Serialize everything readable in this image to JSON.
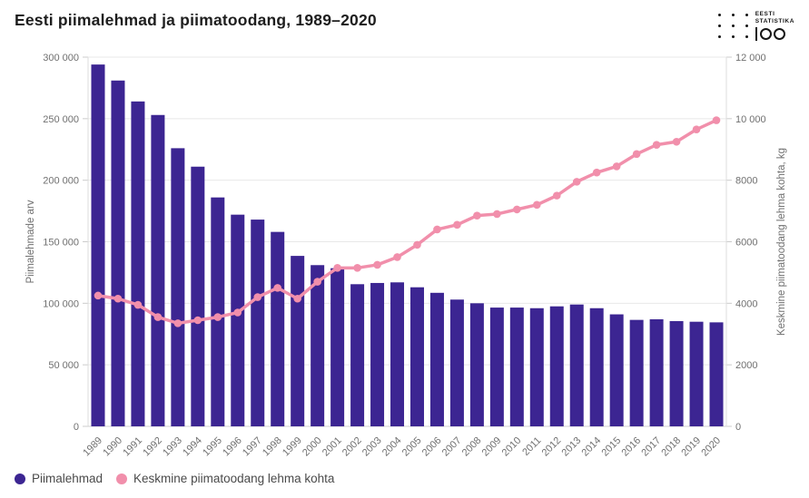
{
  "page": {
    "title": "Eesti piimalehmad ja piimatoodang, 1989–2020"
  },
  "logo": {
    "line1": "EESTI",
    "line2": "STATISTIKA",
    "number": "100"
  },
  "chart_data": {
    "type": "bar",
    "subtype": "bar+line dual axis",
    "title": "Eesti piimalehmad ja piimatoodang, 1989–2020",
    "categories": [
      "1989",
      "1990",
      "1991",
      "1992",
      "1993",
      "1994",
      "1995",
      "1996",
      "1997",
      "1998",
      "1999",
      "2000",
      "2001",
      "2002",
      "2003",
      "2004",
      "2005",
      "2006",
      "2007",
      "2008",
      "2009",
      "2010",
      "2011",
      "2012",
      "2013",
      "2014",
      "2015",
      "2016",
      "2017",
      "2018",
      "2019",
      "2020"
    ],
    "series": [
      {
        "name": "Piimalehmad",
        "type": "bar",
        "axis": "left",
        "color": "#3c2592",
        "values": [
          294000,
          281000,
          264000,
          253000,
          226000,
          211000,
          186000,
          172000,
          168000,
          158000,
          138500,
          131000,
          128500,
          115500,
          116500,
          117000,
          113000,
          108500,
          103000,
          100000,
          96500,
          96500,
          96000,
          97500,
          99000,
          96000,
          91000,
          86500,
          87000,
          85500,
          85000,
          84500
        ]
      },
      {
        "name": "Keskmine piimatoodang lehma kohta",
        "type": "line",
        "axis": "right",
        "color": "#f18fab",
        "values": [
          4250,
          4150,
          3950,
          3550,
          3350,
          3450,
          3550,
          3700,
          4200,
          4500,
          4150,
          4700,
          5150,
          5150,
          5250,
          5500,
          5900,
          6400,
          6550,
          6850,
          6900,
          7050,
          7200,
          7500,
          7950,
          8250,
          8450,
          8850,
          9150,
          9250,
          9650,
          9950
        ]
      }
    ],
    "left_axis": {
      "label": "Piimalehmade arv",
      "min": 0,
      "max": 300000,
      "tick_labels": [
        "0",
        "50 000",
        "100 000",
        "150 000",
        "200 000",
        "250 000",
        "300 000"
      ]
    },
    "right_axis": {
      "label": "Keskmine piimatoodang lehma kohta, kg",
      "min": 0,
      "max": 12000,
      "tick_labels": [
        "0",
        "2000",
        "4000",
        "6000",
        "8000",
        "10 000",
        "12 000"
      ]
    },
    "grid": true,
    "legend_position": "bottom-left",
    "colors": {
      "gridline": "#e8e8e8",
      "axis_line": "#dedede",
      "tick_mark": "#cccccc",
      "tick_text": "#707070"
    }
  }
}
